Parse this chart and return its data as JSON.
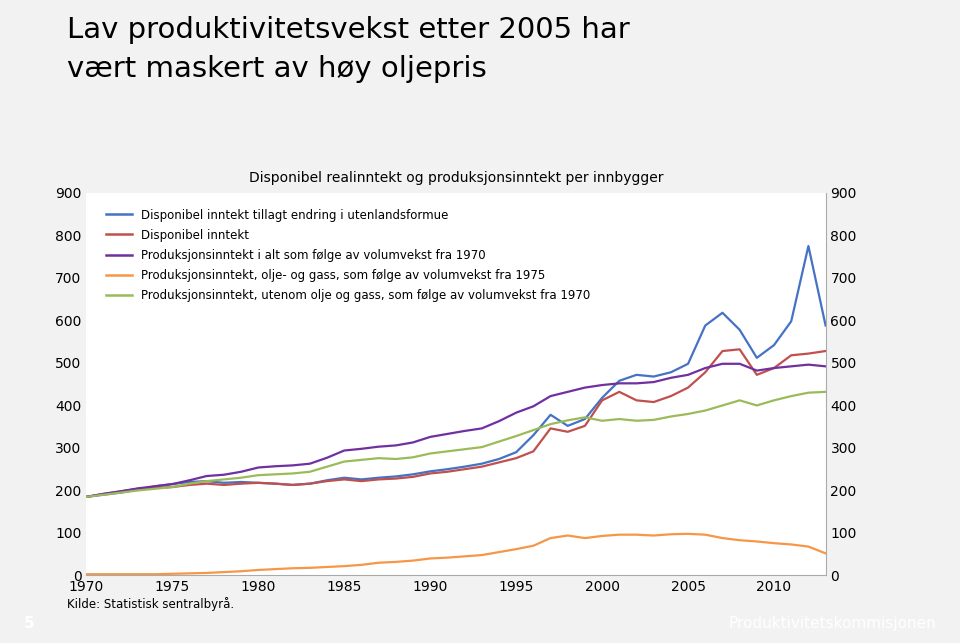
{
  "title_line1": "Lav produktivitetsvekst etter 2005 har",
  "title_line2": "vært maskert av høy oljepris",
  "chart_title": "Disponibel realinntekt og produksjonsinntekt per innbygger",
  "footer_text": "Kilde: Statistisk sentralbyrå.",
  "page_number": "5",
  "institution": "Produktivitetskommisjonen",
  "footer_bar_color": "#8fa8c8",
  "background_color": "#f2f2f2",
  "ylim": [
    0,
    900
  ],
  "yticks": [
    0,
    100,
    200,
    300,
    400,
    500,
    600,
    700,
    800,
    900
  ],
  "xticks": [
    1970,
    1975,
    1980,
    1985,
    1990,
    1995,
    2000,
    2005,
    2010
  ],
  "years": [
    1970,
    1971,
    1972,
    1973,
    1974,
    1975,
    1976,
    1977,
    1978,
    1979,
    1980,
    1981,
    1982,
    1983,
    1984,
    1985,
    1986,
    1987,
    1988,
    1989,
    1990,
    1991,
    1992,
    1993,
    1994,
    1995,
    1996,
    1997,
    1998,
    1999,
    2000,
    2001,
    2002,
    2003,
    2004,
    2005,
    2006,
    2007,
    2008,
    2009,
    2010,
    2011,
    2012,
    2013
  ],
  "series": [
    {
      "key": "blue",
      "label": "Disponibel inntekt tillagt endring i utenlandsformue",
      "color": "#4472C4",
      "data": [
        185,
        190,
        195,
        202,
        210,
        215,
        220,
        222,
        218,
        220,
        218,
        216,
        213,
        216,
        224,
        230,
        226,
        230,
        233,
        238,
        245,
        250,
        256,
        263,
        274,
        290,
        330,
        378,
        352,
        368,
        418,
        458,
        472,
        468,
        478,
        498,
        588,
        618,
        578,
        512,
        542,
        598,
        775,
        588
      ]
    },
    {
      "key": "red",
      "label": "Disponibel inntekt",
      "color": "#C0504D",
      "data": [
        185,
        192,
        198,
        204,
        206,
        208,
        213,
        216,
        213,
        216,
        218,
        216,
        213,
        216,
        222,
        226,
        222,
        226,
        228,
        232,
        240,
        244,
        250,
        256,
        266,
        276,
        292,
        346,
        338,
        352,
        412,
        432,
        412,
        408,
        422,
        442,
        478,
        528,
        532,
        472,
        488,
        518,
        522,
        528
      ]
    },
    {
      "key": "purple",
      "label": "Produksjonsinntekt i alt som følge av volumvekst fra 1970",
      "color": "#7030A0",
      "data": [
        185,
        192,
        198,
        205,
        210,
        215,
        224,
        234,
        237,
        244,
        254,
        257,
        259,
        263,
        277,
        294,
        298,
        303,
        306,
        313,
        326,
        333,
        340,
        346,
        363,
        383,
        398,
        422,
        432,
        442,
        448,
        452,
        452,
        455,
        465,
        472,
        488,
        498,
        498,
        482,
        488,
        492,
        496,
        492
      ]
    },
    {
      "key": "orange",
      "label": "Produksjonsinntekt, olje- og gass, som følge av volumvekst fra 1975",
      "color": "#F79646",
      "data": [
        3,
        3,
        3,
        3,
        3,
        4,
        5,
        6,
        8,
        10,
        13,
        15,
        17,
        18,
        20,
        22,
        25,
        30,
        32,
        35,
        40,
        42,
        45,
        48,
        55,
        62,
        70,
        88,
        94,
        88,
        93,
        96,
        96,
        94,
        97,
        98,
        96,
        88,
        83,
        80,
        76,
        73,
        68,
        52
      ]
    },
    {
      "key": "green",
      "label": "Produksjonsinntekt, utenom olje og gass, som følge av volumvekst fra 1970",
      "color": "#9BBB59",
      "data": [
        185,
        190,
        195,
        200,
        204,
        208,
        216,
        222,
        226,
        230,
        236,
        238,
        240,
        244,
        256,
        268,
        272,
        276,
        274,
        278,
        287,
        292,
        297,
        302,
        315,
        328,
        342,
        356,
        365,
        372,
        364,
        368,
        364,
        366,
        374,
        380,
        388,
        400,
        412,
        400,
        412,
        422,
        430,
        432
      ]
    }
  ]
}
